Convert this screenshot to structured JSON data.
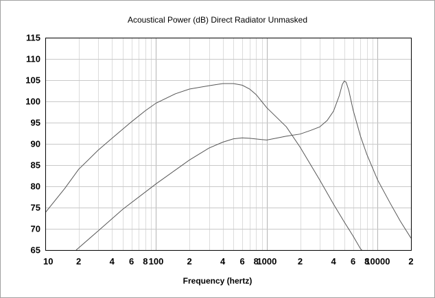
{
  "chart_data": {
    "type": "line",
    "title": "Acoustical Power (dB)   Direct Radiator   Unmasked",
    "xlabel": "Frequency (hertz)",
    "ylabel": "",
    "x_scale": "log",
    "xlim": [
      10,
      20000
    ],
    "ylim": [
      65,
      115
    ],
    "grid": true,
    "x_tick_labels": [
      {
        "value": 10,
        "label": "10"
      },
      {
        "value": 20,
        "label": "2"
      },
      {
        "value": 40,
        "label": "4"
      },
      {
        "value": 60,
        "label": "6"
      },
      {
        "value": 80,
        "label": "8"
      },
      {
        "value": 100,
        "label": "100"
      },
      {
        "value": 200,
        "label": "2"
      },
      {
        "value": 400,
        "label": "4"
      },
      {
        "value": 600,
        "label": "6"
      },
      {
        "value": 800,
        "label": "8"
      },
      {
        "value": 1000,
        "label": "1000"
      },
      {
        "value": 2000,
        "label": "2"
      },
      {
        "value": 4000,
        "label": "4"
      },
      {
        "value": 6000,
        "label": "6"
      },
      {
        "value": 8000,
        "label": "8"
      },
      {
        "value": 10000,
        "label": "10000"
      },
      {
        "value": 20000,
        "label": "2"
      }
    ],
    "y_ticks": [
      65,
      70,
      75,
      80,
      85,
      90,
      95,
      100,
      105,
      110,
      115
    ],
    "series": [
      {
        "color": "#555555",
        "points": [
          [
            10,
            73.8
          ],
          [
            15,
            79.5
          ],
          [
            20,
            84.0
          ],
          [
            30,
            88.5
          ],
          [
            40,
            91.3
          ],
          [
            60,
            95.2
          ],
          [
            80,
            97.8
          ],
          [
            100,
            99.6
          ],
          [
            150,
            101.8
          ],
          [
            200,
            102.9
          ],
          [
            300,
            103.7
          ],
          [
            400,
            104.2
          ],
          [
            500,
            104.2
          ],
          [
            600,
            103.8
          ],
          [
            700,
            102.9
          ],
          [
            800,
            101.6
          ],
          [
            1000,
            98.5
          ],
          [
            1500,
            94.0
          ],
          [
            2000,
            89.2
          ],
          [
            3000,
            81.5
          ],
          [
            4000,
            75.8
          ],
          [
            5000,
            71.6
          ],
          [
            6000,
            68.3
          ],
          [
            7000,
            65.3
          ],
          [
            7500,
            64.5
          ]
        ]
      },
      {
        "color": "#555555",
        "points": [
          [
            19,
            65.0
          ],
          [
            30,
            69.5
          ],
          [
            50,
            74.6
          ],
          [
            100,
            80.6
          ],
          [
            200,
            86.2
          ],
          [
            300,
            89.0
          ],
          [
            400,
            90.4
          ],
          [
            500,
            91.2
          ],
          [
            600,
            91.4
          ],
          [
            700,
            91.3
          ],
          [
            900,
            91.0
          ],
          [
            1000,
            90.9
          ],
          [
            1200,
            91.3
          ],
          [
            1500,
            91.8
          ],
          [
            2000,
            92.3
          ],
          [
            2500,
            93.2
          ],
          [
            3000,
            94.0
          ],
          [
            3500,
            95.5
          ],
          [
            4000,
            97.7
          ],
          [
            4500,
            101.3
          ],
          [
            4800,
            104.0
          ],
          [
            5000,
            104.8
          ],
          [
            5200,
            104.5
          ],
          [
            5500,
            102.5
          ],
          [
            6000,
            98.0
          ],
          [
            7000,
            91.8
          ],
          [
            8000,
            87.5
          ],
          [
            10000,
            81.5
          ],
          [
            13000,
            76.0
          ],
          [
            16000,
            71.8
          ],
          [
            20000,
            67.8
          ]
        ]
      }
    ]
  }
}
